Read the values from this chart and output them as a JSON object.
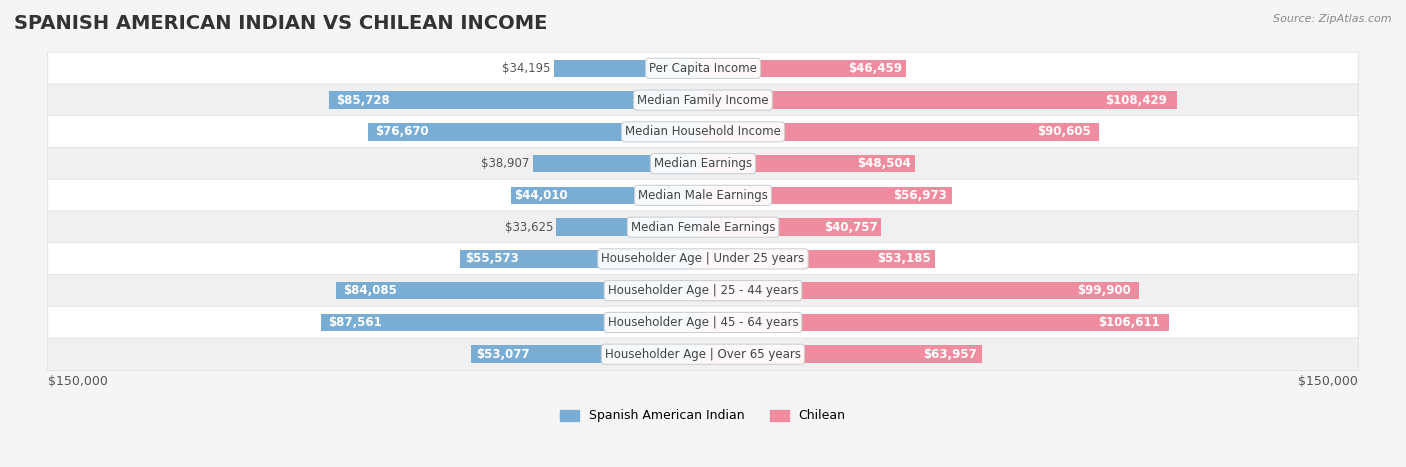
{
  "title": "SPANISH AMERICAN INDIAN VS CHILEAN INCOME",
  "source": "Source: ZipAtlas.com",
  "categories": [
    "Per Capita Income",
    "Median Family Income",
    "Median Household Income",
    "Median Earnings",
    "Median Male Earnings",
    "Median Female Earnings",
    "Householder Age | Under 25 years",
    "Householder Age | 25 - 44 years",
    "Householder Age | 45 - 64 years",
    "Householder Age | Over 65 years"
  ],
  "left_values": [
    34195,
    85728,
    76670,
    38907,
    44010,
    33625,
    55573,
    84085,
    87561,
    53077
  ],
  "right_values": [
    46459,
    108429,
    90605,
    48504,
    56973,
    40757,
    53185,
    99900,
    106611,
    63957
  ],
  "left_labels": [
    "$34,195",
    "$85,728",
    "$76,670",
    "$38,907",
    "$44,010",
    "$33,625",
    "$55,573",
    "$84,085",
    "$87,561",
    "$53,077"
  ],
  "right_labels": [
    "$46,459",
    "$108,429",
    "$90,605",
    "$48,504",
    "$56,973",
    "$40,757",
    "$53,185",
    "$99,900",
    "$106,611",
    "$63,957"
  ],
  "left_color": "#7aadd4",
  "right_color": "#f08ca0",
  "left_color_strong": "#5a8fc4",
  "right_color_strong": "#e8607a",
  "max_value": 150000,
  "legend_left": "Spanish American Indian",
  "legend_right": "Chilean",
  "background_color": "#f5f5f5",
  "row_bg_color": "#ffffff",
  "bar_height": 0.55,
  "title_fontsize": 14,
  "label_fontsize": 8.5,
  "category_fontsize": 8.5,
  "axis_label": "$150,000"
}
